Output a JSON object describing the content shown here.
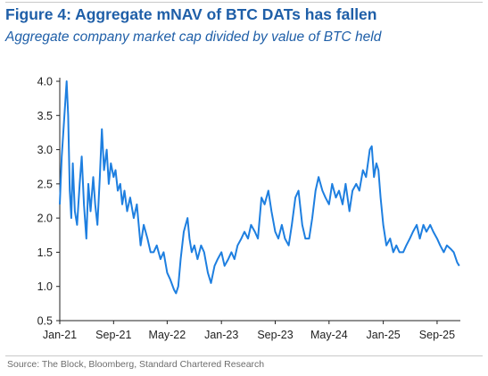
{
  "figure": {
    "title": "Figure 4: Aggregate mNAV of BTC DATs has fallen",
    "subtitle": "Aggregate company market cap divided by value of BTC held",
    "source": "Source: The Block, Bloomberg, Standard Chartered Research"
  },
  "colors": {
    "title": "#1f5fa8",
    "line": "#1e7fe0",
    "axis": "#222222",
    "rule": "#c9c9c9"
  },
  "chart_data": {
    "type": "line",
    "title": "Figure 4: Aggregate mNAV of BTC DATs has fallen",
    "subtitle": "Aggregate company market cap divided by value of BTC held",
    "xlabel": "",
    "ylabel": "",
    "ylim": [
      0.5,
      4.0
    ],
    "xlim": [
      "2021-01-01",
      "2025-12-15"
    ],
    "yticks": [
      0.5,
      1.0,
      1.5,
      2.0,
      2.5,
      3.0,
      3.5,
      4.0
    ],
    "ytick_labels": [
      "0.5",
      "1.0",
      "1.5",
      "2.0",
      "2.5",
      "3.0",
      "3.5",
      "4.0"
    ],
    "xticks": [
      "2021-01-01",
      "2021-09-01",
      "2022-05-01",
      "2023-01-01",
      "2023-09-01",
      "2024-05-01",
      "2025-01-01",
      "2025-09-01"
    ],
    "xtick_labels": [
      "Jan-21",
      "Sep-21",
      "May-22",
      "Jan-23",
      "Sep-23",
      "May-24",
      "Jan-25",
      "Sep-25"
    ],
    "grid": false,
    "legend": "none",
    "series": [
      {
        "x": [
          "2021-01-01",
          "2021-01-10",
          "2021-01-20",
          "2021-02-01",
          "2021-02-08",
          "2021-02-15",
          "2021-02-22",
          "2021-03-01",
          "2021-03-10",
          "2021-03-20",
          "2021-04-01",
          "2021-04-10",
          "2021-04-20",
          "2021-05-01",
          "2021-05-10",
          "2021-05-20",
          "2021-06-01",
          "2021-06-10",
          "2021-06-20",
          "2021-07-01",
          "2021-07-10",
          "2021-07-20",
          "2021-08-01",
          "2021-08-10",
          "2021-08-20",
          "2021-09-01",
          "2021-09-10",
          "2021-09-20",
          "2021-10-01",
          "2021-10-10",
          "2021-10-20",
          "2021-11-01",
          "2021-11-15",
          "2021-12-01",
          "2021-12-15",
          "2022-01-01",
          "2022-01-15",
          "2022-02-01",
          "2022-02-15",
          "2022-03-01",
          "2022-03-15",
          "2022-04-01",
          "2022-04-15",
          "2022-05-01",
          "2022-05-15",
          "2022-06-01",
          "2022-06-10",
          "2022-06-20",
          "2022-07-01",
          "2022-07-15",
          "2022-08-01",
          "2022-08-10",
          "2022-08-20",
          "2022-09-01",
          "2022-09-15",
          "2022-10-01",
          "2022-10-15",
          "2022-11-01",
          "2022-11-15",
          "2022-12-01",
          "2022-12-15",
          "2023-01-01",
          "2023-01-15",
          "2023-02-01",
          "2023-02-15",
          "2023-03-01",
          "2023-03-15",
          "2023-04-01",
          "2023-04-15",
          "2023-05-01",
          "2023-05-15",
          "2023-06-01",
          "2023-06-15",
          "2023-07-01",
          "2023-07-15",
          "2023-08-01",
          "2023-08-15",
          "2023-09-01",
          "2023-09-15",
          "2023-10-01",
          "2023-10-15",
          "2023-11-01",
          "2023-11-15",
          "2023-12-01",
          "2023-12-15",
          "2024-01-01",
          "2024-01-15",
          "2024-02-01",
          "2024-02-15",
          "2024-03-01",
          "2024-03-15",
          "2024-04-01",
          "2024-04-15",
          "2024-05-01",
          "2024-05-15",
          "2024-06-01",
          "2024-06-15",
          "2024-07-01",
          "2024-07-15",
          "2024-08-01",
          "2024-08-15",
          "2024-09-01",
          "2024-09-15",
          "2024-10-01",
          "2024-10-15",
          "2024-11-01",
          "2024-11-10",
          "2024-11-20",
          "2024-12-01",
          "2024-12-10",
          "2024-12-20",
          "2025-01-01",
          "2025-01-15",
          "2025-02-01",
          "2025-02-15",
          "2025-03-01",
          "2025-03-15",
          "2025-04-01",
          "2025-04-15",
          "2025-05-01",
          "2025-05-15",
          "2025-06-01",
          "2025-06-15",
          "2025-07-01",
          "2025-07-15",
          "2025-08-01",
          "2025-08-15",
          "2025-09-01",
          "2025-09-15",
          "2025-10-01",
          "2025-10-15",
          "2025-11-01",
          "2025-11-15",
          "2025-12-01",
          "2025-12-10"
        ],
        "values": [
          2.2,
          2.9,
          3.4,
          4.0,
          3.5,
          2.4,
          2.0,
          2.8,
          2.1,
          1.9,
          2.5,
          2.9,
          2.2,
          1.7,
          2.5,
          2.1,
          2.6,
          2.2,
          1.9,
          2.6,
          3.3,
          2.7,
          3.0,
          2.5,
          2.8,
          2.6,
          2.7,
          2.4,
          2.5,
          2.2,
          2.4,
          2.1,
          2.3,
          2.0,
          2.2,
          1.6,
          1.9,
          1.7,
          1.5,
          1.5,
          1.6,
          1.4,
          1.5,
          1.2,
          1.1,
          0.95,
          0.9,
          1.0,
          1.4,
          1.8,
          2.0,
          1.7,
          1.5,
          1.6,
          1.4,
          1.6,
          1.5,
          1.2,
          1.05,
          1.3,
          1.4,
          1.5,
          1.3,
          1.4,
          1.5,
          1.4,
          1.6,
          1.7,
          1.8,
          1.7,
          1.9,
          1.8,
          1.7,
          2.3,
          2.2,
          2.4,
          2.1,
          1.8,
          1.7,
          1.9,
          1.7,
          1.6,
          1.9,
          2.3,
          2.4,
          1.9,
          1.7,
          1.7,
          2.0,
          2.4,
          2.6,
          2.4,
          2.3,
          2.2,
          2.5,
          2.3,
          2.4,
          2.2,
          2.5,
          2.1,
          2.4,
          2.5,
          2.4,
          2.7,
          2.6,
          3.0,
          3.05,
          2.6,
          2.8,
          2.7,
          2.3,
          1.9,
          1.6,
          1.7,
          1.5,
          1.6,
          1.5,
          1.5,
          1.6,
          1.7,
          1.8,
          1.9,
          1.7,
          1.9,
          1.8,
          1.9,
          1.8,
          1.7,
          1.6,
          1.5,
          1.6,
          1.55,
          1.5,
          1.35,
          1.3
        ]
      }
    ]
  }
}
